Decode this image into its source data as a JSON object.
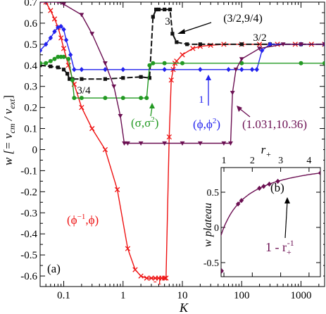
{
  "chart_data": [
    {
      "panel_label": "(a)",
      "type": "line",
      "xlabel": "K",
      "ylabel": "w [= v",
      "ylabel_sub1": "cm",
      "ylabel_slash": " / v",
      "ylabel_sub2": "ext",
      "ylabel_close": "]",
      "xscale": "log",
      "xlim": [
        0.04,
        2500
      ],
      "ylim": [
        -0.65,
        0.7
      ],
      "xticks": [
        {
          "v": 0.1,
          "label": "0.1"
        },
        {
          "v": 1,
          "label": "1"
        },
        {
          "v": 10,
          "label": "10"
        },
        {
          "v": 100,
          "label": "100"
        },
        {
          "v": 1000,
          "label": "1000"
        }
      ],
      "yticks": [
        {
          "v": 0.7,
          "label": "0.7"
        },
        {
          "v": 0.6,
          "label": "0.6"
        },
        {
          "v": 0.5,
          "label": "0.5"
        },
        {
          "v": 0.4,
          "label": "0.4"
        },
        {
          "v": 0.3,
          "label": "0.3"
        },
        {
          "v": 0.2,
          "label": "0.2"
        },
        {
          "v": 0.1,
          "label": "0.1"
        },
        {
          "v": 0,
          "label": "0"
        },
        {
          "v": -0.1,
          "label": "-0.1"
        },
        {
          "v": -0.2,
          "label": "-0.2"
        },
        {
          "v": -0.3,
          "label": "-0.3"
        },
        {
          "v": -0.4,
          "label": "-0.4"
        },
        {
          "v": -0.5,
          "label": "-0.5"
        },
        {
          "v": -0.6,
          "label": "-0.6"
        }
      ],
      "series": [
        {
          "color": "#ee1111",
          "marker": "x",
          "x": [
            0.05,
            0.06,
            0.07,
            0.08,
            0.09,
            0.1,
            0.12,
            0.15,
            0.2,
            0.3,
            0.5,
            0.8,
            1.2,
            1.6,
            2.0,
            2.5,
            3.0,
            3.5,
            4.0,
            4.5,
            5.0,
            5.3,
            6.0,
            6.5,
            7.0,
            7.5,
            8,
            10,
            15,
            20,
            30,
            50,
            100,
            200,
            400,
            800,
            1500,
            2500
          ],
          "y": [
            0.7,
            0.66,
            0.62,
            0.58,
            0.53,
            0.48,
            0.4,
            0.31,
            0.2,
            0.1,
            0.0,
            -0.19,
            -0.47,
            -0.57,
            -0.6,
            -0.61,
            -0.61,
            -0.61,
            -0.61,
            -0.61,
            -0.61,
            -0.61,
            0.06,
            0.33,
            0.38,
            0.41,
            0.42,
            0.45,
            0.48,
            0.49,
            0.495,
            0.5,
            0.5,
            0.5,
            0.5,
            0.5,
            0.5,
            0.5
          ]
        },
        {
          "color": "#111111",
          "marker": "square",
          "dashed": true,
          "x": [
            0.04,
            0.06,
            0.08,
            0.1,
            0.115,
            0.125,
            0.14,
            0.2,
            0.5,
            1,
            2,
            2.8,
            3.2,
            3.6,
            4,
            5,
            6.2,
            6.8,
            8,
            12,
            20,
            100,
            300,
            1000,
            2500
          ],
          "y": [
            0.4,
            0.395,
            0.39,
            0.38,
            0.36,
            0.335,
            0.335,
            0.335,
            0.335,
            0.34,
            0.345,
            0.34,
            0.63,
            0.665,
            0.665,
            0.665,
            0.665,
            0.55,
            0.51,
            0.5,
            0.5,
            0.5,
            0.5,
            0.5,
            0.5
          ]
        },
        {
          "color": "#2222ee",
          "marker": "diamond",
          "x": [
            0.04,
            0.05,
            0.06,
            0.07,
            0.08,
            0.09,
            0.1,
            0.11,
            0.13,
            0.15,
            0.2,
            0.5,
            1,
            5,
            20,
            60,
            100,
            150,
            180,
            220,
            300,
            1000,
            2500
          ],
          "y": [
            0.47,
            0.5,
            0.53,
            0.56,
            0.58,
            0.585,
            0.57,
            0.52,
            0.45,
            0.38,
            0.38,
            0.38,
            0.38,
            0.38,
            0.38,
            0.38,
            0.38,
            0.38,
            0.38,
            0.47,
            0.5,
            0.5,
            0.5
          ]
        },
        {
          "color": "#229922",
          "marker": "circle",
          "x": [
            0.04,
            0.05,
            0.06,
            0.07,
            0.08,
            0.09,
            0.1,
            0.12,
            0.14,
            0.15,
            0.2,
            0.5,
            1,
            2,
            2.5,
            2.8,
            3.2,
            5,
            10,
            100,
            1000,
            2500
          ],
          "y": [
            0.41,
            0.41,
            0.42,
            0.43,
            0.44,
            0.44,
            0.44,
            0.43,
            0.33,
            0.245,
            0.245,
            0.245,
            0.245,
            0.245,
            0.245,
            0.4,
            0.41,
            0.41,
            0.41,
            0.41,
            0.41,
            0.41
          ]
        },
        {
          "color": "#6b0f52",
          "marker": "triangle-down",
          "x": [
            0.04,
            0.05,
            0.08,
            0.1,
            0.2,
            0.3,
            0.5,
            0.7,
            0.9,
            1.05,
            1.2,
            2,
            5,
            10,
            20,
            50,
            65,
            70,
            80,
            100,
            200,
            500,
            1000,
            2500
          ],
          "y": [
            0.7,
            0.7,
            0.7,
            0.69,
            0.64,
            0.55,
            0.41,
            0.3,
            0.16,
            0.03,
            0.03,
            0.03,
            0.03,
            0.03,
            0.03,
            0.03,
            0.03,
            0.27,
            0.38,
            0.43,
            0.48,
            0.5,
            0.5,
            0.5
          ]
        }
      ],
      "annotations": [
        {
          "text": "(3/2,9/4)"
        },
        {
          "text": "3"
        },
        {
          "text": "3/2"
        },
        {
          "text": "3/4"
        },
        {
          "text": "1"
        },
        {
          "text": "-1"
        },
        {
          "text": "(σ,σ",
          "sup": "2",
          "close": ")"
        },
        {
          "text": "(ϕ,ϕ",
          "sup": "2",
          "close": ")"
        },
        {
          "text": "(1.031,10.36)"
        },
        {
          "text": "(ϕ",
          "sup": "−1",
          "close": ",ϕ)"
        }
      ]
    },
    {
      "panel_label": "(b)",
      "type": "line",
      "xlabel": "r",
      "xlabel_sub": "+",
      "ylabel": "w plateau",
      "xlim": [
        0.9,
        4.4
      ],
      "ylim": [
        -0.7,
        0.85
      ],
      "xticks": [
        {
          "v": 1,
          "label": "1"
        },
        {
          "v": 2,
          "label": "2"
        },
        {
          "v": 3,
          "label": "3"
        },
        {
          "v": 4,
          "label": "4"
        }
      ],
      "yticks": [
        {
          "v": 0.5,
          "label": "0.5"
        },
        {
          "v": 0,
          "label": "0"
        },
        {
          "v": -0.5,
          "label": "-0.5"
        }
      ],
      "curve": "1 - 1/r",
      "curve_label": {
        "text": "1 - r",
        "sub": "+",
        "sup": "-1"
      },
      "series": [
        {
          "color": "#6b0f52",
          "marker": "diamond",
          "x": [
            0.618,
            1.5,
            1.618,
            2.25,
            2.4,
            2.6,
            2.9,
            4.4
          ],
          "y": [
            -0.618,
            0.333,
            0.382,
            0.556,
            0.583,
            0.615,
            0.655,
            0.773
          ]
        }
      ]
    }
  ]
}
